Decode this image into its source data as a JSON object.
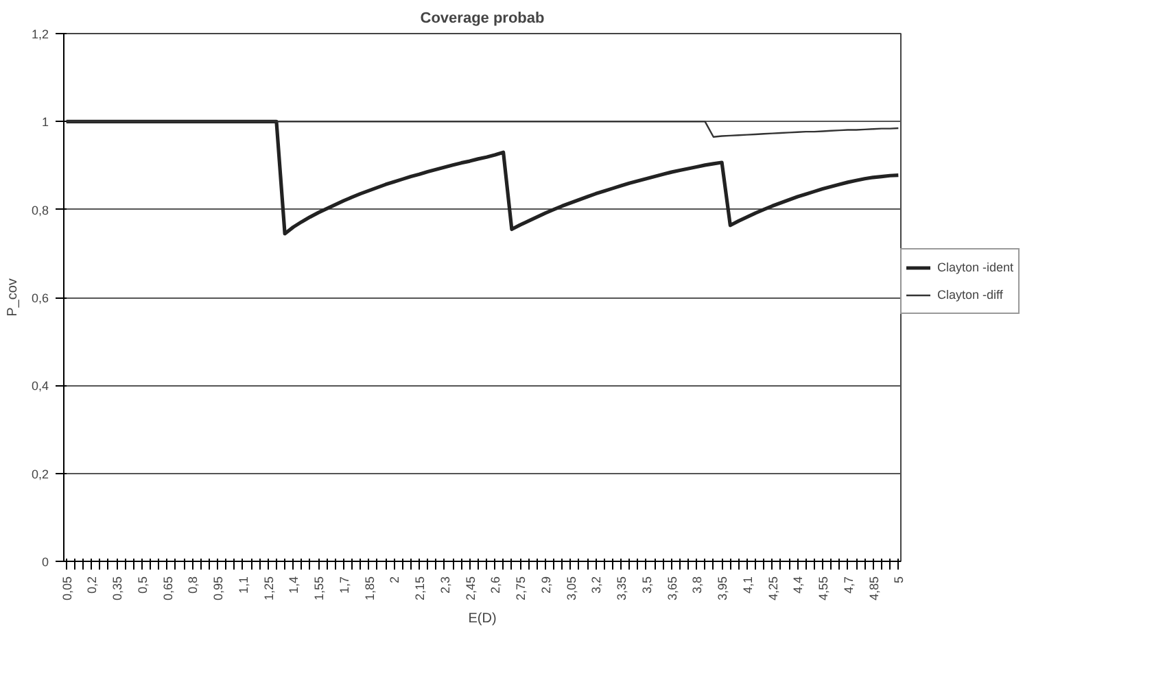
{
  "chart_data": {
    "type": "line",
    "title": "Coverage probab",
    "xlabel": "E(D)",
    "ylabel": "P_cov",
    "categories": [
      "0,05",
      null,
      null,
      "0,2",
      null,
      null,
      "0,35",
      null,
      null,
      "0,5",
      null,
      null,
      "0,65",
      null,
      null,
      "0,8",
      null,
      null,
      "0,95",
      null,
      null,
      "1,1",
      null,
      null,
      "1,25",
      null,
      null,
      "1,4",
      null,
      null,
      "1,55",
      null,
      null,
      "1,7",
      null,
      null,
      "1,85",
      null,
      null,
      "2",
      null,
      null,
      "2,15",
      null,
      null,
      "2,3",
      null,
      null,
      "2,45",
      null,
      null,
      "2,6",
      null,
      null,
      "2,75",
      null,
      null,
      "2,9",
      null,
      null,
      "3,05",
      null,
      null,
      "3,2",
      null,
      null,
      "3,35",
      null,
      null,
      "3,5",
      null,
      null,
      "3,65",
      null,
      null,
      "3,8",
      null,
      null,
      "3,95",
      null,
      null,
      "4,1",
      null,
      null,
      "4,25",
      null,
      null,
      "4,4",
      null,
      null,
      "4,55",
      null,
      null,
      "4,7",
      null,
      null,
      "4,85",
      null,
      null,
      "5"
    ],
    "series": [
      {
        "name": "Clayton -ident",
        "color": "#222222",
        "values": [
          1,
          1,
          1,
          1,
          1,
          1,
          1,
          1,
          1,
          1,
          1,
          1,
          1,
          1,
          1,
          1,
          1,
          1,
          1,
          1,
          1,
          1,
          1,
          1,
          1,
          1,
          0.745,
          0.76,
          0.772,
          0.783,
          0.793,
          0.802,
          0.811,
          0.82,
          0.828,
          0.836,
          0.843,
          0.85,
          0.857,
          0.863,
          0.869,
          0.875,
          0.88,
          0.886,
          0.891,
          0.896,
          0.901,
          0.906,
          0.91,
          0.915,
          0.919,
          0.924,
          0.93,
          0.755,
          0.765,
          0.774,
          0.783,
          0.792,
          0.8,
          0.808,
          0.815,
          0.822,
          0.829,
          0.836,
          0.842,
          0.848,
          0.854,
          0.86,
          0.865,
          0.87,
          0.875,
          0.88,
          0.885,
          0.889,
          0.893,
          0.897,
          0.901,
          0.904,
          0.907,
          0.764,
          0.774,
          0.783,
          0.792,
          0.8,
          0.808,
          0.815,
          0.822,
          0.829,
          0.835,
          0.841,
          0.847,
          0.852,
          0.857,
          0.862,
          0.866,
          0.87,
          0.873,
          0.875,
          0.877,
          0.878
        ]
      },
      {
        "name": "Clayton -diff",
        "color": "#333333",
        "values": [
          1,
          1,
          1,
          1,
          1,
          1,
          1,
          1,
          1,
          1,
          1,
          1,
          1,
          1,
          1,
          1,
          1,
          1,
          1,
          1,
          1,
          1,
          1,
          1,
          1,
          1,
          1,
          1,
          1,
          1,
          1,
          1,
          1,
          1,
          1,
          1,
          1,
          1,
          1,
          1,
          1,
          1,
          1,
          1,
          1,
          1,
          1,
          1,
          1,
          1,
          1,
          1,
          1,
          1,
          1,
          1,
          1,
          1,
          1,
          1,
          1,
          1,
          1,
          1,
          1,
          1,
          1,
          1,
          1,
          1,
          1,
          1,
          1,
          1,
          1,
          1,
          1,
          0.965,
          0.967,
          0.968,
          0.969,
          0.97,
          0.971,
          0.972,
          0.973,
          0.974,
          0.975,
          0.976,
          0.977,
          0.977,
          0.978,
          0.979,
          0.98,
          0.981,
          0.981,
          0.982,
          0.983,
          0.984,
          0.984,
          0.985
        ]
      }
    ],
    "ylim": [
      0,
      1.2
    ],
    "yticks": [
      0,
      {
        "value": 0.2,
        "label": "0,2"
      },
      {
        "value": 0.4,
        "label": "0,4"
      },
      {
        "value": 0.6,
        "label": "0,6"
      },
      {
        "value": 0.8,
        "label": "0,8"
      },
      1,
      {
        "value": 1.2,
        "label": "1,2"
      }
    ],
    "grid": "y",
    "legend": "right",
    "marker": "none",
    "line_style": "solid"
  }
}
